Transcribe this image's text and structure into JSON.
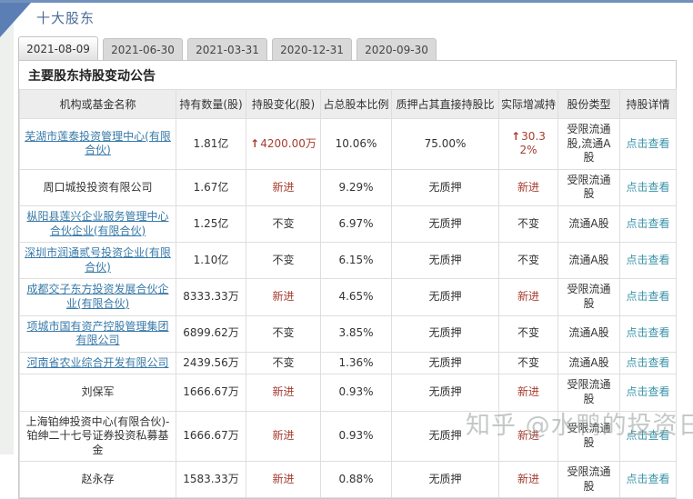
{
  "page": {
    "title": "十大股东",
    "panel_heading": "主要股东持股变动公告",
    "watermark": "知乎 @水鸭的投资日志"
  },
  "tabs": [
    {
      "label": "2021-08-09",
      "active": true
    },
    {
      "label": "2021-06-30",
      "active": false
    },
    {
      "label": "2021-03-31",
      "active": false
    },
    {
      "label": "2020-12-31",
      "active": false
    },
    {
      "label": "2020-09-30",
      "active": false
    }
  ],
  "table": {
    "headers": [
      "机构或基金名称",
      "持有数量(股)",
      "持股变化(股)",
      "占总股本比例",
      "质押占其直接持股比",
      "实际增减持",
      "股份类型",
      "持股详情"
    ],
    "rows": [
      {
        "name": "芜湖市莲泰投资管理中心(有限合伙)",
        "is_link": true,
        "qty": "1.81亿",
        "change_arrow": "↑",
        "change": "4200.00万",
        "change_red": true,
        "pct": "10.06%",
        "pledge": "75.00%",
        "actual_arrow": "↑",
        "actual": "30.32%",
        "actual_red": true,
        "share_type": "受限流通股,流通A股",
        "detail": "点击查看"
      },
      {
        "name": "周口城投投资有限公司",
        "is_link": false,
        "qty": "1.67亿",
        "change_arrow": "",
        "change": "新进",
        "change_red": true,
        "pct": "9.29%",
        "pledge": "无质押",
        "actual_arrow": "",
        "actual": "新进",
        "actual_red": true,
        "share_type": "受限流通股",
        "detail": "点击查看"
      },
      {
        "name": "枞阳县莲兴企业服务管理中心合伙企业(有限合伙)",
        "is_link": true,
        "qty": "1.25亿",
        "change_arrow": "",
        "change": "不变",
        "change_red": false,
        "pct": "6.97%",
        "pledge": "无质押",
        "actual_arrow": "",
        "actual": "不变",
        "actual_red": false,
        "share_type": "流通A股",
        "detail": "点击查看"
      },
      {
        "name": "深圳市润通贰号投资企业(有限合伙)",
        "is_link": true,
        "qty": "1.10亿",
        "change_arrow": "",
        "change": "不变",
        "change_red": false,
        "pct": "6.15%",
        "pledge": "无质押",
        "actual_arrow": "",
        "actual": "不变",
        "actual_red": false,
        "share_type": "流通A股",
        "detail": "点击查看"
      },
      {
        "name": "成都交子东方投资发展合伙企业(有限合伙)",
        "is_link": true,
        "qty": "8333.33万",
        "change_arrow": "",
        "change": "新进",
        "change_red": true,
        "pct": "4.65%",
        "pledge": "无质押",
        "actual_arrow": "",
        "actual": "新进",
        "actual_red": true,
        "share_type": "受限流通股",
        "detail": "点击查看"
      },
      {
        "name": "项城市国有资产控股管理集团有限公司",
        "is_link": true,
        "qty": "6899.62万",
        "change_arrow": "",
        "change": "不变",
        "change_red": false,
        "pct": "3.85%",
        "pledge": "无质押",
        "actual_arrow": "",
        "actual": "不变",
        "actual_red": false,
        "share_type": "流通A股",
        "detail": "点击查看"
      },
      {
        "name": "河南省农业综合开发有限公司",
        "is_link": true,
        "qty": "2439.56万",
        "change_arrow": "",
        "change": "不变",
        "change_red": false,
        "pct": "1.36%",
        "pledge": "无质押",
        "actual_arrow": "",
        "actual": "不变",
        "actual_red": false,
        "share_type": "流通A股",
        "detail": "点击查看"
      },
      {
        "name": "刘保军",
        "is_link": false,
        "qty": "1666.67万",
        "change_arrow": "",
        "change": "新进",
        "change_red": true,
        "pct": "0.93%",
        "pledge": "无质押",
        "actual_arrow": "",
        "actual": "新进",
        "actual_red": true,
        "share_type": "受限流通股",
        "detail": "点击查看"
      },
      {
        "name": "上海铂绅投资中心(有限合伙)-铂绅二十七号证券投资私募基金",
        "is_link": false,
        "qty": "1666.67万",
        "change_arrow": "",
        "change": "新进",
        "change_red": true,
        "pct": "0.93%",
        "pledge": "无质押",
        "actual_arrow": "",
        "actual": "新进",
        "actual_red": true,
        "share_type": "受限流通股",
        "detail": "点击查看"
      },
      {
        "name": "赵永存",
        "is_link": false,
        "qty": "1583.33万",
        "change_arrow": "",
        "change": "新进",
        "change_red": true,
        "pct": "0.88%",
        "pledge": "无质押",
        "actual_arrow": "",
        "actual": "新进",
        "actual_red": true,
        "share_type": "受限流通股",
        "detail": "点击查看"
      }
    ]
  },
  "colors": {
    "accent_blue": "#7191bd",
    "triangle_blue": "#5b7fb5",
    "title_blue": "#4a6b96",
    "link_blue": "#3779a8",
    "detail_teal": "#3a93a8",
    "change_red": "#a63d30",
    "header_bg": "#ededed"
  }
}
